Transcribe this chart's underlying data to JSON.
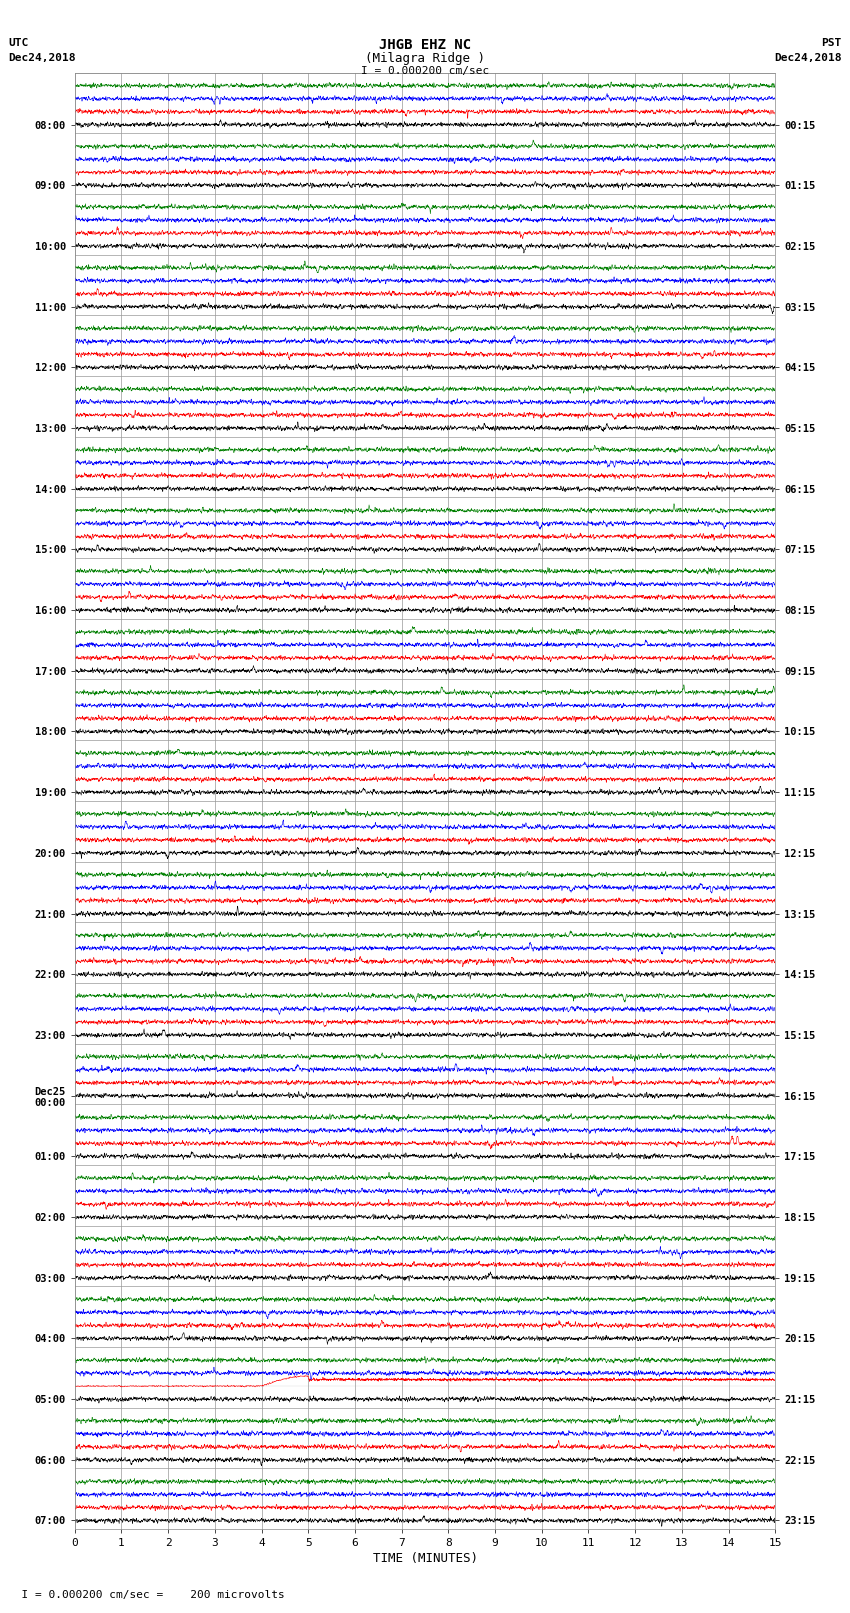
{
  "title_line1": "JHGB EHZ NC",
  "title_line2": "(Milagra Ridge )",
  "scale_label": "I = 0.000200 cm/sec",
  "left_header": "UTC\nDec24,2018",
  "right_header": "PST\nDec24,2018",
  "bottom_note": "  I = 0.000200 cm/sec =    200 microvolts",
  "xlabel": "TIME (MINUTES)",
  "x_ticks": [
    0,
    1,
    2,
    3,
    4,
    5,
    6,
    7,
    8,
    9,
    10,
    11,
    12,
    13,
    14,
    15
  ],
  "utc_labels_with_rows": [
    [
      "08:00",
      0
    ],
    [
      "09:00",
      4
    ],
    [
      "10:00",
      8
    ],
    [
      "11:00",
      12
    ],
    [
      "12:00",
      16
    ],
    [
      "13:00",
      20
    ],
    [
      "14:00",
      24
    ],
    [
      "15:00",
      28
    ],
    [
      "16:00",
      32
    ],
    [
      "17:00",
      36
    ],
    [
      "18:00",
      40
    ],
    [
      "19:00",
      44
    ],
    [
      "20:00",
      48
    ],
    [
      "21:00",
      52
    ],
    [
      "22:00",
      56
    ],
    [
      "23:00",
      60
    ],
    [
      "Dec25\n00:00",
      64
    ],
    [
      "01:00",
      68
    ],
    [
      "02:00",
      72
    ],
    [
      "03:00",
      76
    ],
    [
      "04:00",
      80
    ],
    [
      "05:00",
      84
    ],
    [
      "06:00",
      88
    ],
    [
      "07:00",
      92
    ]
  ],
  "pst_labels_with_rows": [
    [
      "00:15",
      0
    ],
    [
      "01:15",
      4
    ],
    [
      "02:15",
      8
    ],
    [
      "03:15",
      12
    ],
    [
      "04:15",
      16
    ],
    [
      "05:15",
      20
    ],
    [
      "06:15",
      24
    ],
    [
      "07:15",
      28
    ],
    [
      "08:15",
      32
    ],
    [
      "09:15",
      36
    ],
    [
      "10:15",
      40
    ],
    [
      "11:15",
      44
    ],
    [
      "12:15",
      48
    ],
    [
      "13:15",
      52
    ],
    [
      "14:15",
      56
    ],
    [
      "15:15",
      60
    ],
    [
      "16:15",
      64
    ],
    [
      "17:15",
      68
    ],
    [
      "18:15",
      72
    ],
    [
      "19:15",
      76
    ],
    [
      "20:15",
      80
    ],
    [
      "21:15",
      84
    ],
    [
      "22:15",
      88
    ],
    [
      "23:15",
      92
    ]
  ],
  "n_groups": 24,
  "traces_per_group": 4,
  "minutes_per_row": 15,
  "bg_color": "#ffffff",
  "grid_color": "#999999",
  "trace_colors": [
    "black",
    "red",
    "blue",
    "green"
  ],
  "fig_width": 8.5,
  "fig_height": 16.13,
  "earthquake_group": 21,
  "earthquake_trace": 1
}
